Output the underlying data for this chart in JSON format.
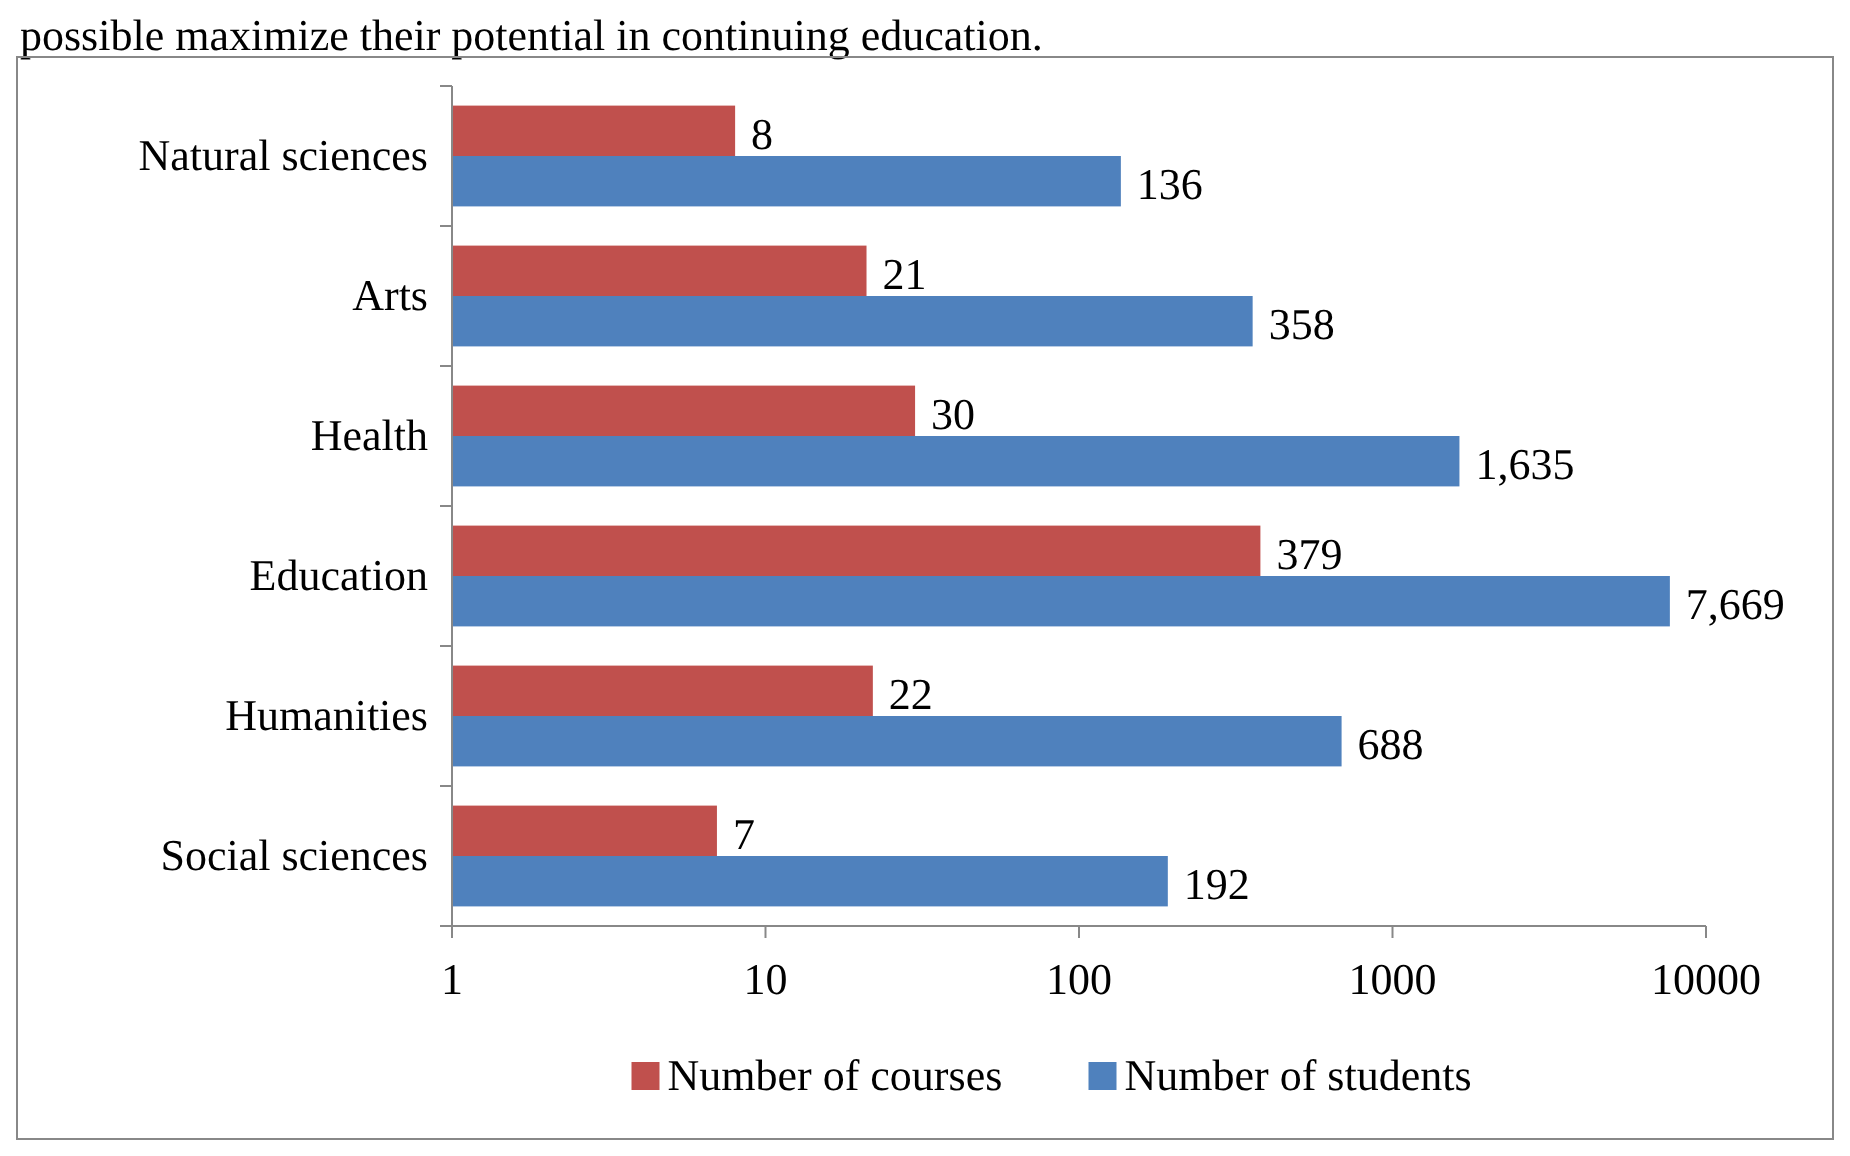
{
  "chart_data": {
    "type": "bar",
    "orientation": "horizontal",
    "log": "x",
    "annotations": [
      "possible maximize their potential in continuing education."
    ],
    "categories": [
      "Natural sciences",
      "Arts",
      "Health",
      "Education",
      "Humanities",
      "Social sciences"
    ],
    "series": [
      {
        "name": "Number of courses",
        "color": "#c0504d",
        "values": [
          8,
          21,
          30,
          379,
          22,
          7
        ],
        "value_labels": [
          "8",
          "21",
          "30",
          "379",
          "22",
          "7"
        ]
      },
      {
        "name": "Number of students",
        "color": "#4f81bd",
        "values": [
          136,
          358,
          1635,
          7669,
          688,
          192
        ],
        "value_labels": [
          "136",
          "358",
          "1,635",
          "7,669",
          "688",
          "192"
        ]
      }
    ],
    "xlim": [
      1,
      10000
    ],
    "xticks": [
      1,
      10,
      100,
      1000,
      10000
    ],
    "legend": "bottom"
  }
}
